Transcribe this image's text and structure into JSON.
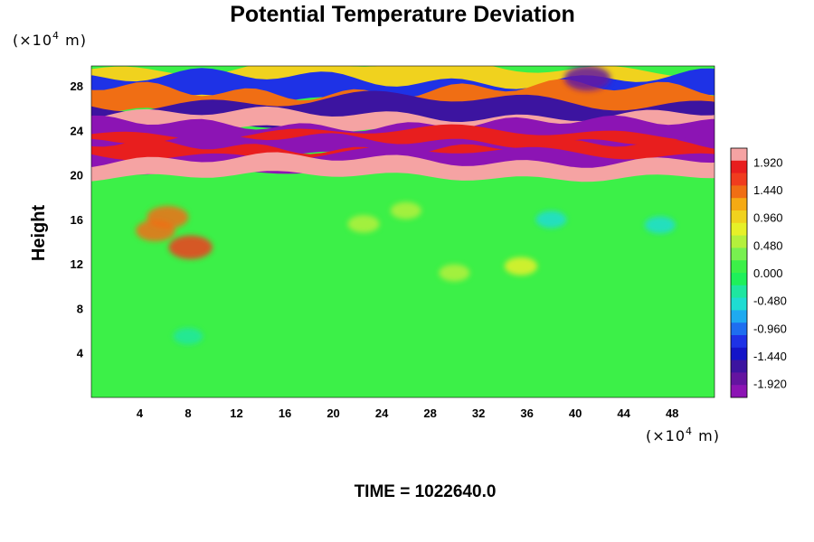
{
  "chart_data": {
    "type": "heatmap",
    "title": "Potential Temperature Deviation",
    "ylabel": "Height",
    "y_unit": {
      "prefix": "(×10",
      "exp": "4",
      "suffix": " m)"
    },
    "x_unit": {
      "prefix": "(×10",
      "exp": "4",
      "suffix": " m)"
    },
    "xlim": [
      0,
      51.5
    ],
    "ylim": [
      0,
      29.8
    ],
    "x_ticks": [
      4,
      8,
      12,
      16,
      20,
      24,
      28,
      32,
      36,
      40,
      44,
      48
    ],
    "y_ticks": [
      4,
      8,
      12,
      16,
      20,
      24,
      28
    ],
    "colorbar": {
      "min": -2.16,
      "max": 2.16,
      "tick_labels": [
        "1.920",
        "1.440",
        "0.960",
        "0.480",
        "0.000",
        "-0.480",
        "-0.960",
        "-1.440",
        "-1.920"
      ],
      "colors": [
        "#f5a3a3",
        "#e81e1e",
        "#f03c1e",
        "#f06e14",
        "#f5aa14",
        "#f0d21e",
        "#e6f028",
        "#b4f03c",
        "#78f050",
        "#3cf048",
        "#1ef05a",
        "#1ee6a0",
        "#1edcd2",
        "#1eaaf0",
        "#1e6ef0",
        "#1e32e6",
        "#1414c8",
        "#3c14a0",
        "#6414a0",
        "#8c14b4"
      ]
    },
    "bands": [
      {
        "y": 20.6,
        "value": 2.0
      },
      {
        "y": 21.2,
        "value": -2.0
      },
      {
        "y": 21.8,
        "value": 1.9
      },
      {
        "y": 22.4,
        "value": -2.0
      },
      {
        "y": 23.1,
        "value": 1.9
      },
      {
        "y": 23.9,
        "value": -2.0
      },
      {
        "y": 24.7,
        "value": 2.0
      },
      {
        "y": 25.6,
        "value": -1.6
      },
      {
        "y": 26.6,
        "value": 1.4
      },
      {
        "y": 27.6,
        "value": -1.2
      },
      {
        "y": 28.7,
        "value": 1.0
      }
    ],
    "blobs": [
      {
        "x": 8.2,
        "y": 13.5,
        "value": 1.7
      },
      {
        "x": 6.3,
        "y": 16.2,
        "value": 1.5
      },
      {
        "x": 5.3,
        "y": 15.0,
        "value": 1.3
      },
      {
        "x": 22.5,
        "y": 15.6,
        "value": 0.6
      },
      {
        "x": 26.0,
        "y": 16.8,
        "value": 0.5
      },
      {
        "x": 35.5,
        "y": 11.8,
        "value": 0.7
      },
      {
        "x": 30.0,
        "y": 11.2,
        "value": 0.5
      },
      {
        "x": 38.0,
        "y": 16.0,
        "value": -0.5
      },
      {
        "x": 47.0,
        "y": 15.5,
        "value": -0.5
      },
      {
        "x": 8.0,
        "y": 5.5,
        "value": -0.4
      },
      {
        "x": 41.0,
        "y": 28.7,
        "value": -1.9
      }
    ]
  },
  "footer": {
    "time_label": "TIME = 1022640.0"
  }
}
